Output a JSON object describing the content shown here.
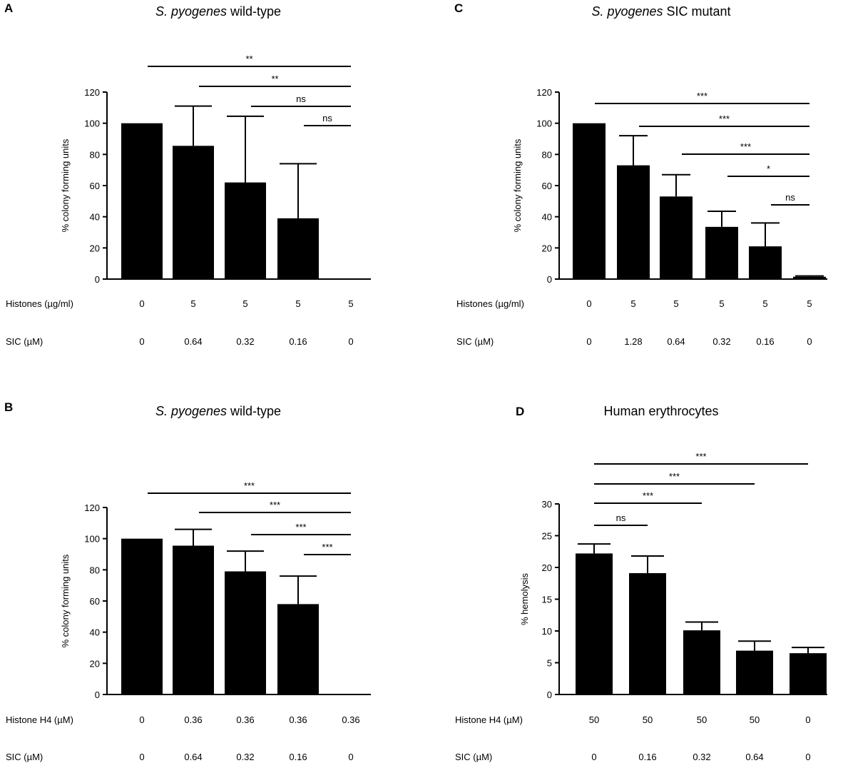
{
  "chart_data": [
    {
      "id": "A",
      "type": "bar",
      "panel_label": "A",
      "title_italic": "S. pyogenes",
      "title_rest": " wild-type",
      "ylabel": "% colony forming units",
      "ylim": [
        0,
        120
      ],
      "yticks": [
        "0",
        "20",
        "40",
        "60",
        "80",
        "100",
        "120"
      ],
      "values": [
        100,
        85.5,
        62,
        39,
        0
      ],
      "errors": [
        0,
        25.5,
        42.5,
        35,
        0
      ],
      "rows": [
        {
          "label": "Histones (µg/ml)",
          "cells": [
            "0",
            "5",
            "5",
            "5",
            "5"
          ]
        },
        {
          "label": "SIC (µM)",
          "cells": [
            "0",
            "0.64",
            "0.32",
            "0.16",
            "0"
          ]
        }
      ],
      "comparisons": [
        {
          "from": 0,
          "to": 4,
          "label": "**"
        },
        {
          "from": 1,
          "to": 4,
          "label": "**"
        },
        {
          "from": 2,
          "to": 4,
          "label": "ns"
        },
        {
          "from": 3,
          "to": 4,
          "label": "ns"
        }
      ]
    },
    {
      "id": "B",
      "type": "bar",
      "panel_label": "B",
      "title_italic": "S. pyogenes",
      "title_rest": " wild-type",
      "ylabel": "% colony forming units",
      "ylim": [
        0,
        120
      ],
      "yticks": [
        "0",
        "20",
        "40",
        "60",
        "80",
        "100",
        "120"
      ],
      "values": [
        100,
        95.5,
        79,
        58,
        0
      ],
      "errors": [
        0,
        10.5,
        13,
        18,
        0
      ],
      "rows": [
        {
          "label": "Histone H4 (µM)",
          "cells": [
            "0",
            "0.36",
            "0.36",
            "0.36",
            "0.36"
          ]
        },
        {
          "label": "SIC (µM)",
          "cells": [
            "0",
            "0.64",
            "0.32",
            "0.16",
            "0"
          ]
        }
      ],
      "comparisons": [
        {
          "from": 0,
          "to": 4,
          "label": "***"
        },
        {
          "from": 1,
          "to": 4,
          "label": "***"
        },
        {
          "from": 2,
          "to": 4,
          "label": "***"
        },
        {
          "from": 3,
          "to": 4,
          "label": "***"
        }
      ]
    },
    {
      "id": "C",
      "type": "bar",
      "panel_label": "C",
      "title_italic": "S. pyogenes",
      "title_rest": " SIC mutant",
      "ylabel": "% colony forming units",
      "ylim": [
        0,
        120
      ],
      "yticks": [
        "0",
        "20",
        "40",
        "60",
        "80",
        "100",
        "120"
      ],
      "values": [
        100,
        73,
        53,
        33.5,
        21,
        1.5
      ],
      "errors": [
        0,
        19,
        14,
        10,
        15,
        0.5
      ],
      "rows": [
        {
          "label": "Histones (µg/ml)",
          "cells": [
            "0",
            "5",
            "5",
            "5",
            "5",
            "5"
          ]
        },
        {
          "label": "SIC (µM)",
          "cells": [
            "0",
            "1.28",
            "0.64",
            "0.32",
            "0.16",
            "0"
          ]
        }
      ],
      "comparisons": [
        {
          "from": 0,
          "to": 5,
          "label": "***"
        },
        {
          "from": 1,
          "to": 5,
          "label": "***"
        },
        {
          "from": 2,
          "to": 5,
          "label": "***"
        },
        {
          "from": 3,
          "to": 5,
          "label": "*"
        },
        {
          "from": 4,
          "to": 5,
          "label": "ns"
        }
      ]
    },
    {
      "id": "D",
      "type": "bar",
      "panel_label": "D",
      "title_italic": "",
      "title_rest": "Human erythrocytes",
      "ylabel": "% hemolysis",
      "ylim": [
        0,
        30
      ],
      "yticks": [
        "0",
        "5",
        "10",
        "15",
        "20",
        "25",
        "30"
      ],
      "values": [
        22.2,
        19.1,
        10.1,
        6.9,
        6.5
      ],
      "errors": [
        1.5,
        2.7,
        1.3,
        1.5,
        0.9
      ],
      "rows": [
        {
          "label": "Histone H4 (µM)",
          "cells": [
            "50",
            "50",
            "50",
            "50",
            "0"
          ]
        },
        {
          "label": "SIC (µM)",
          "cells": [
            "0",
            "0.16",
            "0.32",
            "0.64",
            "0"
          ]
        }
      ],
      "comparisons": [
        {
          "from": 0,
          "to": 1,
          "label": "ns"
        },
        {
          "from": 0,
          "to": 2,
          "label": "***"
        },
        {
          "from": 0,
          "to": 3,
          "label": "***"
        },
        {
          "from": 0,
          "to": 4,
          "label": "***"
        }
      ]
    }
  ]
}
